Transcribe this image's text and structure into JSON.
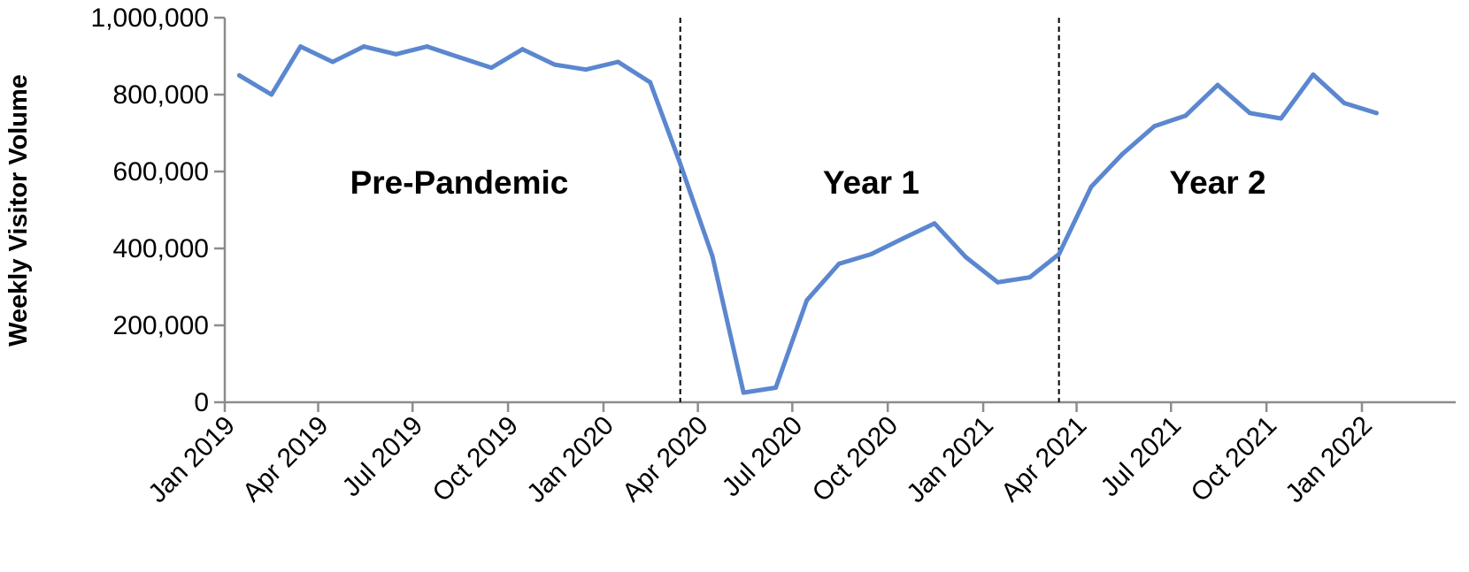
{
  "chart_data": {
    "type": "line",
    "title": "",
    "xlabel": "",
    "ylabel": "Weekly Visitor Volume",
    "ylim": [
      0,
      1000000
    ],
    "y_ticks": [
      0,
      200000,
      400000,
      600000,
      800000,
      1000000
    ],
    "y_tick_labels": [
      "0",
      "200,000",
      "400,000",
      "600,000",
      "800,000",
      "1,000,000"
    ],
    "x_ticks": [
      "2019-01",
      "2019-04",
      "2019-07",
      "2019-10",
      "2020-01",
      "2020-04",
      "2020-07",
      "2020-10",
      "2021-01",
      "2021-04",
      "2021-07",
      "2021-10",
      "2022-01"
    ],
    "x_tick_labels": [
      "Jan 2019",
      "Apr 2019",
      "Jul 2019",
      "Oct 2019",
      "Jan 2020",
      "Apr 2020",
      "Jul 2020",
      "Oct 2020",
      "Jan 2021",
      "Apr 2021",
      "Jul 2021",
      "Oct 2021",
      "Jan 2022"
    ],
    "grid": false,
    "series": [
      {
        "color": "#5b87cf",
        "points": [
          {
            "x": "2019-01-15",
            "y": 850000
          },
          {
            "x": "2019-02-15",
            "y": 800000
          },
          {
            "x": "2019-03-15",
            "y": 925000
          },
          {
            "x": "2019-04-15",
            "y": 885000
          },
          {
            "x": "2019-05-15",
            "y": 925000
          },
          {
            "x": "2019-06-15",
            "y": 905000
          },
          {
            "x": "2019-07-15",
            "y": 925000
          },
          {
            "x": "2019-08-15",
            "y": 897000
          },
          {
            "x": "2019-09-15",
            "y": 870000
          },
          {
            "x": "2019-10-15",
            "y": 918000
          },
          {
            "x": "2019-11-15",
            "y": 878000
          },
          {
            "x": "2019-12-15",
            "y": 865000
          },
          {
            "x": "2020-01-15",
            "y": 885000
          },
          {
            "x": "2020-02-15",
            "y": 832000
          },
          {
            "x": "2020-03-15",
            "y": 620000
          },
          {
            "x": "2020-04-15",
            "y": 380000
          },
          {
            "x": "2020-05-15",
            "y": 25000
          },
          {
            "x": "2020-06-15",
            "y": 38000
          },
          {
            "x": "2020-07-15",
            "y": 265000
          },
          {
            "x": "2020-08-15",
            "y": 360000
          },
          {
            "x": "2020-09-15",
            "y": 385000
          },
          {
            "x": "2020-10-15",
            "y": 425000
          },
          {
            "x": "2020-11-15",
            "y": 465000
          },
          {
            "x": "2020-12-15",
            "y": 378000
          },
          {
            "x": "2021-01-15",
            "y": 312000
          },
          {
            "x": "2021-02-15",
            "y": 325000
          },
          {
            "x": "2021-03-15",
            "y": 385000
          },
          {
            "x": "2021-04-15",
            "y": 560000
          },
          {
            "x": "2021-05-15",
            "y": 645000
          },
          {
            "x": "2021-06-15",
            "y": 718000
          },
          {
            "x": "2021-07-15",
            "y": 745000
          },
          {
            "x": "2021-08-15",
            "y": 825000
          },
          {
            "x": "2021-09-15",
            "y": 752000
          },
          {
            "x": "2021-10-15",
            "y": 738000
          },
          {
            "x": "2021-11-15",
            "y": 852000
          },
          {
            "x": "2021-12-15",
            "y": 778000
          },
          {
            "x": "2022-01-15",
            "y": 752000
          }
        ]
      }
    ],
    "dividers": [
      "2020-03-15",
      "2021-03-15"
    ],
    "annotations": [
      {
        "text": "Pre-Pandemic",
        "x": "2019-08-15",
        "y": 570000
      },
      {
        "text": "Year 1",
        "x": "2020-09-15",
        "y": 570000
      },
      {
        "text": "Year 2",
        "x": "2021-08-15",
        "y": 570000
      }
    ]
  }
}
